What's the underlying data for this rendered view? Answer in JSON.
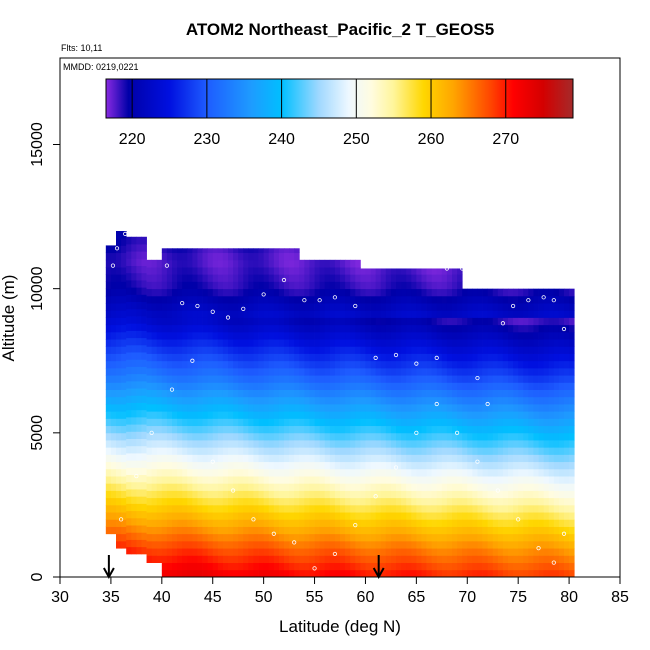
{
  "chart_data": {
    "type": "heatmap",
    "title": "ATOM2 Northeast_Pacific_2 T_GEOS5",
    "flights_text": "Flts: 10,11",
    "mmdd_text": "MMDD: 0219,0221",
    "xlabel": "Latitude (deg N)",
    "ylabel": "Altitude (m)",
    "xlim": [
      30,
      85
    ],
    "ylim": [
      0,
      18000
    ],
    "x_ticks": [
      30,
      35,
      40,
      45,
      50,
      55,
      60,
      65,
      70,
      75,
      80,
      85
    ],
    "x_tick_labels": [
      "30",
      "35",
      "40",
      "45",
      "50",
      "55",
      "60",
      "65",
      "70",
      "75",
      "80",
      "85"
    ],
    "y_ticks": [
      0,
      5000,
      10000,
      15000
    ],
    "y_tick_labels": [
      "0",
      "5000",
      "10000",
      "15000"
    ],
    "colorbar": {
      "range": [
        216.5,
        279
      ],
      "ticks": [
        220,
        230,
        240,
        250,
        260,
        270
      ],
      "tick_labels": [
        "220",
        "230",
        "240",
        "250",
        "260",
        "270"
      ],
      "stops": [
        {
          "v": 216.5,
          "c": "#8a2be2"
        },
        {
          "v": 219.5,
          "c": "#0000a8"
        },
        {
          "v": 225,
          "c": "#0010e0"
        },
        {
          "v": 230,
          "c": "#1e5cff"
        },
        {
          "v": 236,
          "c": "#1e9cff"
        },
        {
          "v": 240,
          "c": "#00bfff"
        },
        {
          "v": 245,
          "c": "#a0d8ff"
        },
        {
          "v": 249,
          "c": "#eef8ff"
        },
        {
          "v": 252,
          "c": "#fffce0"
        },
        {
          "v": 255,
          "c": "#fff59a"
        },
        {
          "v": 259,
          "c": "#ffd700"
        },
        {
          "v": 263,
          "c": "#ffa500"
        },
        {
          "v": 268,
          "c": "#ff4500"
        },
        {
          "v": 271,
          "c": "#ff0000"
        },
        {
          "v": 275,
          "c": "#d40000"
        },
        {
          "v": 279,
          "c": "#a52a2a"
        }
      ]
    },
    "temperature_model": {
      "levels_m": [
        0,
        1000,
        2000,
        3000,
        4000,
        5000,
        6000,
        7000,
        8000,
        9000,
        10000,
        11000,
        12000
      ],
      "temps_K": [
        274,
        269,
        263,
        257,
        251,
        245,
        239,
        233,
        228,
        223,
        219,
        218,
        220
      ],
      "lat_cooling_K_per_deg": 0.13,
      "lat_reference_deg": 35
    },
    "columns": [
      {
        "lat_start": 34.5,
        "lat_end": 35.5,
        "alt_min": 1500,
        "alt_max": 11500
      },
      {
        "lat_start": 35.5,
        "lat_end": 36.5,
        "alt_min": 1000,
        "alt_max": 12000
      },
      {
        "lat_start": 36.5,
        "lat_end": 38.5,
        "alt_min": 800,
        "alt_max": 11800
      },
      {
        "lat_start": 38.5,
        "lat_end": 40.0,
        "alt_min": 500,
        "alt_max": 11000
      },
      {
        "lat_start": 40.0,
        "lat_end": 53.5,
        "alt_min": 0,
        "alt_max": 11400
      },
      {
        "lat_start": 53.5,
        "lat_end": 59.5,
        "alt_min": 0,
        "alt_max": 11000
      },
      {
        "lat_start": 59.5,
        "lat_end": 69.5,
        "alt_min": 0,
        "alt_max": 10700
      },
      {
        "lat_start": 69.5,
        "lat_end": 73.5,
        "alt_min": 0,
        "alt_max": 10000
      },
      {
        "lat_start": 73.5,
        "lat_end": 80.5,
        "alt_min": 0,
        "alt_max": 10000
      }
    ],
    "flight_track": [
      [
        35.2,
        10800
      ],
      [
        35.6,
        11400
      ],
      [
        36.4,
        11900
      ],
      [
        37.5,
        11950
      ],
      [
        38.5,
        11900
      ],
      [
        39.2,
        11500
      ],
      [
        40.5,
        10800
      ],
      [
        42.0,
        9500
      ],
      [
        43.5,
        9400
      ],
      [
        45.0,
        9200
      ],
      [
        46.5,
        9000
      ],
      [
        48.0,
        9300
      ],
      [
        50.0,
        9800
      ],
      [
        52.0,
        10300
      ],
      [
        54.0,
        9600
      ],
      [
        55.5,
        9600
      ],
      [
        57.0,
        9700
      ],
      [
        59.0,
        9400
      ],
      [
        61.0,
        7600
      ],
      [
        63.0,
        7700
      ],
      [
        65.0,
        7400
      ],
      [
        67.0,
        7600
      ],
      [
        68.0,
        10700
      ],
      [
        69.5,
        10700
      ],
      [
        71.0,
        6900
      ],
      [
        72.0,
        6000
      ],
      [
        73.5,
        8800
      ],
      [
        74.5,
        9400
      ],
      [
        76.0,
        9600
      ],
      [
        77.5,
        9700
      ],
      [
        78.5,
        9600
      ],
      [
        79.5,
        8600
      ],
      [
        36.0,
        2000
      ],
      [
        37.5,
        3500
      ],
      [
        39.0,
        5000
      ],
      [
        41.0,
        6500
      ],
      [
        43.0,
        7500
      ],
      [
        45.0,
        4000
      ],
      [
        47.0,
        3000
      ],
      [
        49.0,
        2000
      ],
      [
        51.0,
        1500
      ],
      [
        53.0,
        1200
      ],
      [
        55.0,
        300
      ],
      [
        57.0,
        800
      ],
      [
        59.0,
        1800
      ],
      [
        61.0,
        2800
      ],
      [
        63.0,
        3800
      ],
      [
        65.0,
        5000
      ],
      [
        67.0,
        6000
      ],
      [
        69.0,
        5000
      ],
      [
        71.0,
        4000
      ],
      [
        73.0,
        3000
      ],
      [
        75.0,
        2000
      ],
      [
        77.0,
        1000
      ],
      [
        78.5,
        500
      ],
      [
        79.5,
        1500
      ]
    ],
    "markers": [
      {
        "lat": 34.8,
        "label": "down-arrow"
      },
      {
        "lat": 61.3,
        "label": "down-arrow"
      }
    ]
  }
}
